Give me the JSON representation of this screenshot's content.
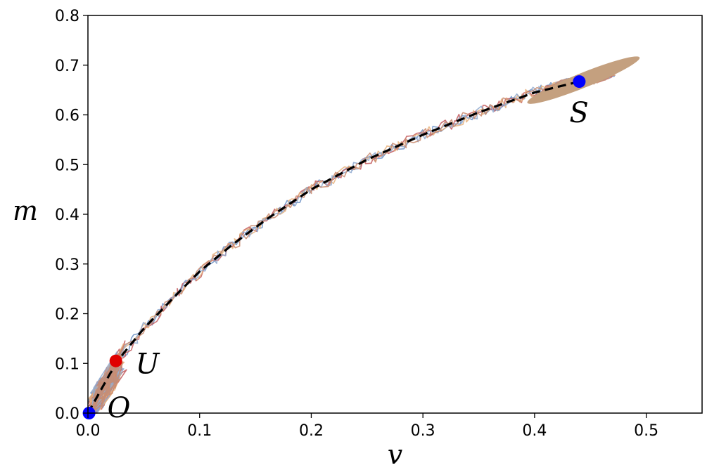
{
  "chart_data": {
    "type": "scatter",
    "title": "",
    "xlabel": "v",
    "ylabel": "m",
    "xlim": [
      0.0,
      0.55
    ],
    "ylim": [
      0.0,
      0.8
    ],
    "xticks": [
      0.0,
      0.1,
      0.2,
      0.3,
      0.4,
      0.5
    ],
    "xtick_labels": [
      "0.0",
      "0.1",
      "0.2",
      "0.3",
      "0.4",
      "0.5"
    ],
    "yticks": [
      0.0,
      0.1,
      0.2,
      0.3,
      0.4,
      0.5,
      0.6,
      0.7,
      0.8
    ],
    "ytick_labels": [
      "0.0",
      "0.1",
      "0.2",
      "0.3",
      "0.4",
      "0.5",
      "0.6",
      "0.7",
      "0.8"
    ],
    "grid": false,
    "legend": "none",
    "dashed_curve": {
      "color": "#000000",
      "x": [
        0.0,
        0.01,
        0.02,
        0.03,
        0.05,
        0.08,
        0.1,
        0.13,
        0.16,
        0.2,
        0.25,
        0.3,
        0.35,
        0.4,
        0.44
      ],
      "y": [
        0.0,
        0.04,
        0.08,
        0.115,
        0.17,
        0.24,
        0.285,
        0.34,
        0.39,
        0.45,
        0.51,
        0.56,
        0.605,
        0.645,
        0.667
      ]
    },
    "trajectories": [
      {
        "color": "#6a8fc4",
        "seed": 11
      },
      {
        "color": "#c2585a",
        "seed": 23
      },
      {
        "color": "#e8b27d",
        "seed": 37
      },
      {
        "color": "#8fa9cf",
        "seed": 41
      },
      {
        "color": "#c98a6d",
        "seed": 53
      }
    ],
    "cluster": {
      "fill": "#c4a07f",
      "cx": 0.44,
      "cy": 0.667,
      "rx": 0.035,
      "ry": 0.02,
      "angle_deg": -22
    },
    "points": [
      {
        "label": "S",
        "x": 0.44,
        "y": 0.667,
        "color": "#0000ff"
      },
      {
        "label": "U",
        "x": 0.025,
        "y": 0.105,
        "color": "#e00000"
      },
      {
        "label": "O",
        "x": 0.001,
        "y": 0.0,
        "color": "#0000ff"
      }
    ]
  }
}
